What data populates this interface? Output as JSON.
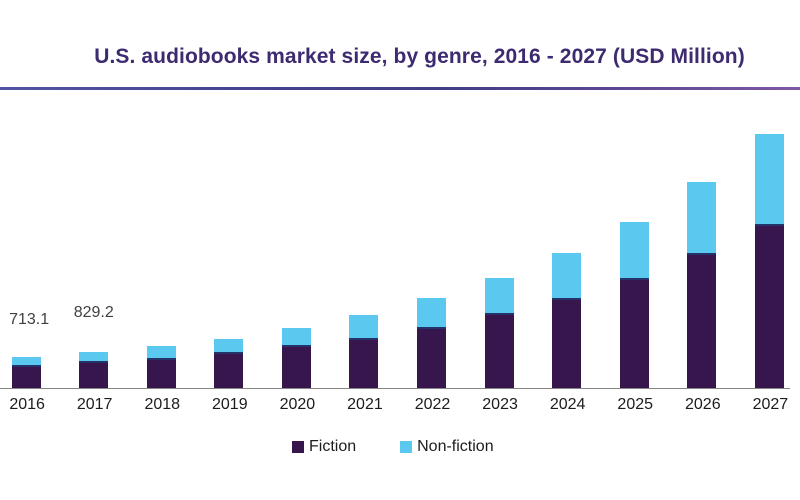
{
  "chart_data": {
    "type": "bar",
    "stacked": true,
    "title": "U.S. audiobooks market size, by genre, 2016 - 2027 (USD Million)",
    "unit": "USD Million",
    "categories": [
      "2016",
      "2017",
      "2018",
      "2019",
      "2020",
      "2021",
      "2022",
      "2023",
      "2024",
      "2025",
      "2026",
      "2027"
    ],
    "series": [
      {
        "name": "Fiction",
        "color": "#37154d",
        "values": [
          483,
          575,
          644,
          782,
          943,
          1104,
          1346,
          1668,
          2024,
          2484,
          3059,
          3726
        ]
      },
      {
        "name": "Non-fiction",
        "color": "#5bc8f0",
        "values": [
          230.1,
          254.2,
          311,
          345,
          437,
          575,
          725,
          863,
          1081,
          1334,
          1668,
          2116
        ]
      }
    ],
    "annotations": [
      {
        "category": "2016",
        "text": "713.1"
      },
      {
        "category": "2017",
        "text": "829.2"
      }
    ],
    "legend": {
      "position": "bottom",
      "entries": [
        "Fiction",
        "Non-fiction"
      ]
    },
    "grid": false,
    "y_axis_visible": false,
    "x_axis_line_color": "#868686",
    "title_color": "#3e2a70",
    "ylim": [
      0,
      6500
    ]
  }
}
